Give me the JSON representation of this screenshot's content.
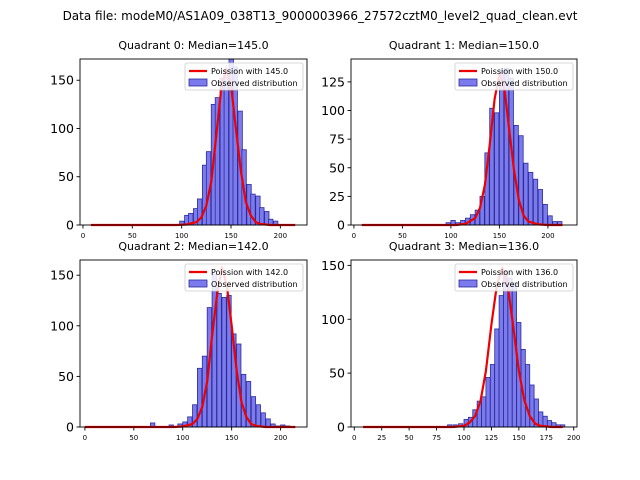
{
  "figure": {
    "suptitle": "Data file: modeM0/AS1A09_038T13_9000003966_27572cztM0_level2_quad_clean.evt",
    "colors": {
      "bar_fill": "#7b7bed",
      "bar_edge": "#2b2b99",
      "poisson_line": "#ee0000",
      "axis": "#000000",
      "background": "#ffffff"
    }
  },
  "chart_data": [
    {
      "type": "bar",
      "title": "Quadrant 0: Median=145.0",
      "xlim": [
        -3,
        227
      ],
      "ylim": [
        0,
        172
      ],
      "xticks": [
        0,
        50,
        100,
        150,
        200
      ],
      "yticks": [
        0,
        50,
        100,
        150
      ],
      "bin_width": 4.5,
      "legend": {
        "line_label": "Poission with 145.0",
        "bar_label": "Observed distribution",
        "placement": "upper right"
      },
      "bins_start": [
        98,
        103,
        107,
        112,
        116,
        121,
        125,
        130,
        134,
        139,
        143,
        148,
        152,
        157,
        161,
        166,
        170,
        175,
        179,
        184,
        188,
        193
      ],
      "counts": [
        4,
        10,
        12,
        17,
        27,
        62,
        76,
        125,
        132,
        152,
        158,
        172,
        164,
        118,
        78,
        42,
        32,
        30,
        18,
        14,
        6,
        4
      ],
      "poisson_x": [
        8,
        20,
        40,
        60,
        80,
        95,
        105,
        115,
        120,
        125,
        130,
        135,
        140,
        145,
        150,
        155,
        160,
        165,
        170,
        175,
        180,
        190,
        200,
        215
      ],
      "poisson_y": [
        0,
        0,
        0,
        0,
        0,
        0,
        0.5,
        3,
        8,
        20,
        45,
        92,
        140,
        162,
        145,
        100,
        56,
        24,
        10,
        3,
        1,
        0,
        0,
        0
      ]
    },
    {
      "type": "bar",
      "title": "Quadrant 1: Median=150.0",
      "xlim": [
        -3,
        230
      ],
      "ylim": [
        0,
        145
      ],
      "xticks": [
        0,
        50,
        100,
        150,
        200
      ],
      "yticks": [
        0,
        25,
        50,
        75,
        100,
        125
      ],
      "bin_width": 4.5,
      "legend": {
        "line_label": "Poission with 150.0",
        "bar_label": "Observed distribution",
        "placement": "upper right"
      },
      "bins_start": [
        95,
        100,
        105,
        110,
        115,
        120,
        125,
        130,
        135,
        140,
        145,
        150,
        155,
        160,
        165,
        170,
        175,
        180,
        185,
        190,
        195,
        200,
        205,
        210
      ],
      "counts": [
        2,
        4,
        2,
        4,
        6,
        9,
        13,
        25,
        63,
        102,
        98,
        135,
        137,
        128,
        87,
        78,
        54,
        46,
        40,
        31,
        18,
        8,
        3,
        3
      ],
      "poisson_x": [
        8,
        30,
        60,
        90,
        105,
        115,
        125,
        130,
        135,
        140,
        145,
        150,
        155,
        160,
        165,
        170,
        175,
        180,
        190,
        200,
        215
      ],
      "poisson_y": [
        0,
        0,
        0,
        0,
        0,
        1,
        6,
        15,
        35,
        70,
        110,
        132,
        120,
        84,
        48,
        22,
        8,
        3,
        0.5,
        0,
        0
      ]
    },
    {
      "type": "bar",
      "title": "Quadrant 2: Median=142.0",
      "xlim": [
        -5,
        227
      ],
      "ylim": [
        0,
        165
      ],
      "xticks": [
        0,
        50,
        100,
        150,
        200
      ],
      "yticks": [
        0,
        50,
        100,
        150
      ],
      "bin_width": 4.5,
      "legend": {
        "line_label": "Poission with 142.0",
        "bar_label": "Observed distribution",
        "placement": "upper right"
      },
      "bins_start": [
        67,
        86,
        95,
        100,
        105,
        110,
        115,
        120,
        125,
        130,
        135,
        140,
        145,
        150,
        155,
        160,
        165,
        170,
        175,
        180,
        185,
        190,
        195,
        200,
        205
      ],
      "counts": [
        4,
        2,
        3,
        5,
        10,
        22,
        58,
        70,
        118,
        151,
        132,
        128,
        130,
        92,
        82,
        52,
        45,
        30,
        22,
        14,
        8,
        3,
        1,
        2,
        1
      ],
      "poisson_x": [
        0,
        30,
        60,
        90,
        100,
        110,
        115,
        120,
        125,
        130,
        135,
        140,
        145,
        150,
        155,
        160,
        165,
        170,
        175,
        185,
        200,
        215
      ],
      "poisson_y": [
        0,
        0,
        0,
        0,
        0.5,
        3,
        8,
        20,
        45,
        90,
        130,
        158,
        140,
        100,
        56,
        25,
        10,
        3,
        1,
        0,
        0,
        0
      ]
    },
    {
      "type": "bar",
      "title": "Quadrant 3: Median=136.0",
      "xlim": [
        -3,
        203
      ],
      "ylim": [
        0,
        155
      ],
      "xticks": [
        0,
        25,
        50,
        75,
        100,
        125,
        150,
        175,
        200
      ],
      "yticks": [
        0,
        50,
        100,
        150
      ],
      "bin_width": 3.9,
      "legend": {
        "line_label": "Poission with 136.0",
        "bar_label": "Observed distribution",
        "placement": "upper right"
      },
      "bins_start": [
        85,
        90,
        95,
        100,
        104,
        108,
        112,
        116,
        120,
        124,
        128,
        132,
        136,
        140,
        144,
        148,
        152,
        156,
        160,
        164,
        168,
        172,
        176,
        180,
        184,
        188
      ],
      "counts": [
        2,
        2,
        3,
        7,
        9,
        16,
        24,
        28,
        46,
        58,
        91,
        122,
        145,
        138,
        134,
        97,
        72,
        58,
        39,
        26,
        14,
        10,
        6,
        4,
        2,
        2
      ],
      "poisson_x": [
        8,
        30,
        60,
        90,
        100,
        105,
        110,
        115,
        120,
        125,
        130,
        135,
        140,
        145,
        150,
        155,
        160,
        165,
        170,
        180,
        190
      ],
      "poisson_y": [
        0,
        0,
        0,
        0,
        1,
        4,
        10,
        24,
        52,
        95,
        132,
        148,
        130,
        92,
        52,
        25,
        10,
        3,
        1,
        0,
        0
      ]
    }
  ]
}
